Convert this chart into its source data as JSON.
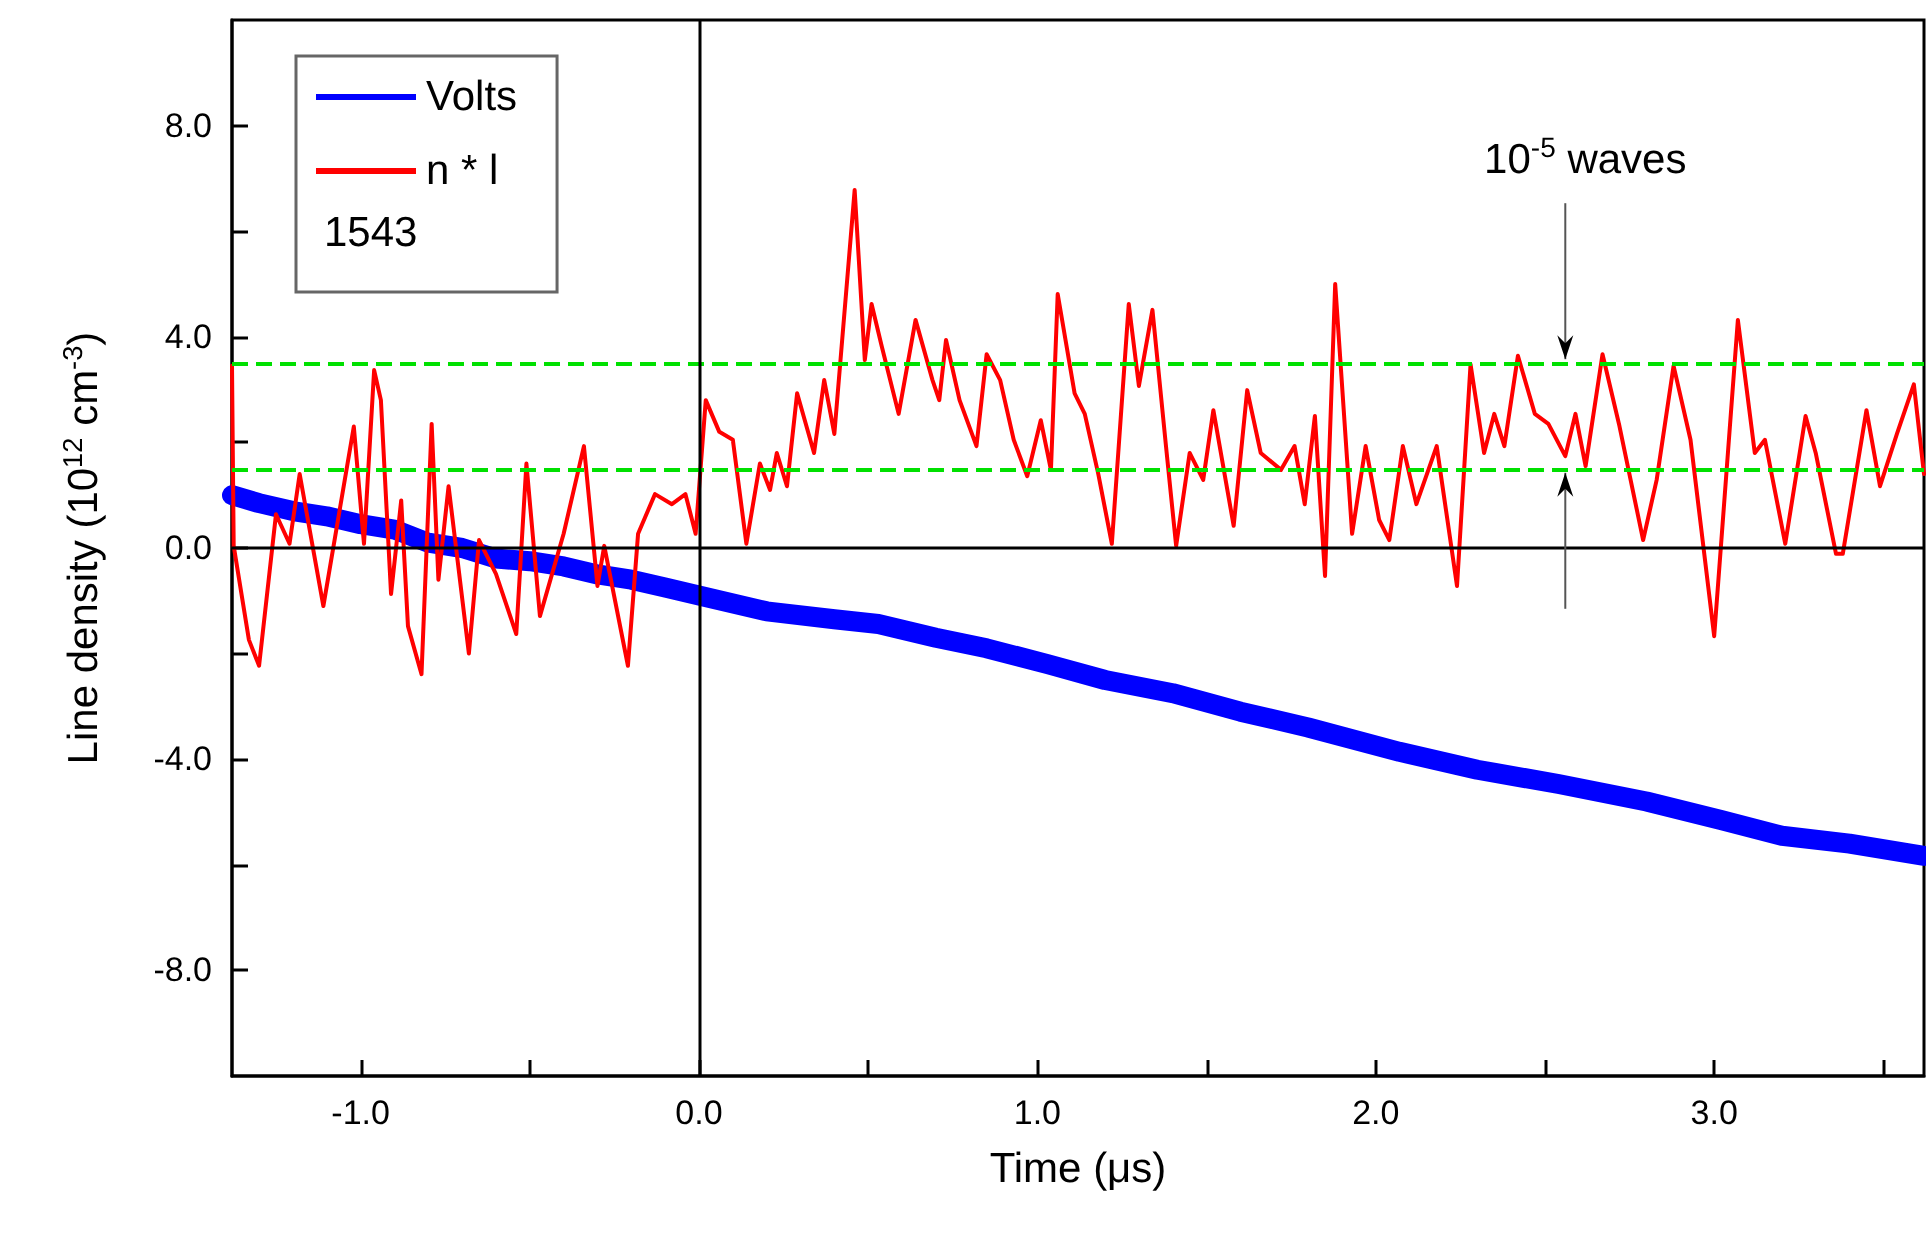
{
  "chart_data": {
    "type": "line",
    "xlabel": "Time (μs)",
    "ylabel": "Line density (10$^{12}$ cm$^{-3}$)",
    "xlim": [
      -1.38,
      3.62
    ],
    "ylim": [
      -10,
      10
    ],
    "xticks": [
      {
        "value": -1,
        "label": "-1.0"
      },
      {
        "value": -0.5,
        "label": null
      },
      {
        "value": 0,
        "label": "0.0"
      },
      {
        "value": 0.5,
        "label": null
      },
      {
        "value": 1,
        "label": "1.0"
      },
      {
        "value": 1.5,
        "label": null
      },
      {
        "value": 2,
        "label": "2.0"
      },
      {
        "value": 2.5,
        "label": null
      },
      {
        "value": 3,
        "label": "3.0"
      },
      {
        "value": 3.5,
        "label": null
      }
    ],
    "yticks": [
      {
        "value": -8,
        "label": "-8.0"
      },
      {
        "value": -6,
        "label": null
      },
      {
        "value": -4,
        "label": "-4.0"
      },
      {
        "value": -2,
        "label": null
      },
      {
        "value": 0,
        "label": "0.0"
      },
      {
        "value": 2,
        "label": null
      },
      {
        "value": 4,
        "label": "4.0"
      },
      {
        "value": 6,
        "label": null
      },
      {
        "value": 8,
        "label": "8.0"
      }
    ],
    "legend": "top left",
    "grid": false,
    "marker": "none",
    "series": [
      {
        "name": "Volts",
        "color": "#0000ff",
        "x": [
          -1.38,
          -1.3,
          -1.2,
          -1.1,
          -1.0,
          -0.9,
          -0.8,
          -0.7,
          -0.6,
          -0.5,
          -0.4,
          -0.3,
          -0.2,
          -0.1,
          0.0,
          0.2,
          0.4,
          0.53,
          0.7,
          0.85,
          1.03,
          1.2,
          1.4,
          1.6,
          1.8,
          2.07,
          2.3,
          2.54,
          2.8,
          3.02,
          3.2,
          3.4,
          3.62
        ],
        "values": [
          1.0,
          0.85,
          0.7,
          0.6,
          0.45,
          0.35,
          0.1,
          0.0,
          -0.2,
          -0.25,
          -0.35,
          -0.5,
          -0.6,
          -0.75,
          -0.9,
          -1.2,
          -1.35,
          -1.44,
          -1.7,
          -1.9,
          -2.2,
          -2.5,
          -2.75,
          -3.1,
          -3.4,
          -3.86,
          -4.2,
          -4.47,
          -4.8,
          -5.15,
          -5.45,
          -5.6,
          -5.83
        ]
      },
      {
        "name": "n * l",
        "color": "#ff0000",
        "x": [
          -1.38,
          -1.375,
          -1.33,
          -1.3,
          -1.25,
          -1.21,
          -1.18,
          -1.11,
          -1.02,
          -0.99,
          -0.96,
          -0.94,
          -0.91,
          -0.88,
          -0.86,
          -0.82,
          -0.79,
          -0.77,
          -0.74,
          -0.68,
          -0.65,
          -0.6,
          -0.54,
          -0.51,
          -0.47,
          -0.4,
          -0.34,
          -0.3,
          -0.28,
          -0.21,
          -0.18,
          -0.13,
          -0.08,
          -0.04,
          -0.01,
          0.02,
          0.06,
          0.1,
          0.14,
          0.18,
          0.21,
          0.23,
          0.26,
          0.29,
          0.34,
          0.37,
          0.4,
          0.46,
          0.49,
          0.51,
          0.54,
          0.59,
          0.64,
          0.69,
          0.71,
          0.73,
          0.77,
          0.82,
          0.85,
          0.89,
          0.93,
          0.97,
          1.01,
          1.04,
          1.06,
          1.11,
          1.14,
          1.18,
          1.22,
          1.27,
          1.3,
          1.34,
          1.38,
          1.41,
          1.45,
          1.49,
          1.52,
          1.58,
          1.62,
          1.66,
          1.72,
          1.76,
          1.79,
          1.82,
          1.85,
          1.88,
          1.93,
          1.97,
          2.01,
          2.04,
          2.08,
          2.12,
          2.18,
          2.24,
          2.28,
          2.32,
          2.35,
          2.38,
          2.42,
          2.47,
          2.51,
          2.56,
          2.59,
          2.62,
          2.67,
          2.72,
          2.79,
          2.83,
          2.88,
          2.93,
          3.0,
          3.07,
          3.12,
          3.15,
          3.21,
          3.27,
          3.3,
          3.36,
          3.38,
          3.45,
          3.49,
          3.54,
          3.59,
          3.62
        ],
        "values": [
          3.45,
          0.04,
          -1.74,
          -2.23,
          0.64,
          0.08,
          1.4,
          -1.1,
          2.3,
          0.08,
          3.37,
          2.8,
          -0.87,
          0.9,
          -1.48,
          -2.39,
          2.35,
          -0.6,
          1.17,
          -2.0,
          0.15,
          -0.49,
          -1.63,
          1.6,
          -1.29,
          0.27,
          1.93,
          -0.72,
          0.04,
          -2.23,
          0.27,
          1.02,
          0.83,
          1.02,
          0.27,
          2.8,
          2.2,
          2.05,
          0.08,
          1.6,
          1.1,
          1.8,
          1.17,
          2.93,
          1.8,
          3.18,
          2.16,
          6.78,
          3.56,
          4.62,
          3.82,
          2.54,
          4.32,
          3.18,
          2.8,
          3.94,
          2.8,
          1.93,
          3.67,
          3.18,
          2.05,
          1.36,
          2.42,
          1.48,
          4.81,
          2.93,
          2.54,
          1.4,
          0.08,
          4.62,
          3.07,
          4.51,
          1.93,
          0.04,
          1.8,
          1.29,
          2.61,
          0.42,
          2.99,
          1.8,
          1.48,
          1.93,
          0.83,
          2.5,
          -0.53,
          5.0,
          0.27,
          1.93,
          0.53,
          0.15,
          1.93,
          0.83,
          1.93,
          -0.72,
          3.48,
          1.8,
          2.54,
          1.93,
          3.64,
          2.54,
          2.35,
          1.74,
          2.54,
          1.55,
          3.67,
          2.31,
          0.15,
          1.29,
          3.45,
          2.05,
          -1.67,
          4.32,
          1.8,
          2.05,
          0.08,
          2.5,
          1.8,
          -0.11,
          -0.11,
          2.61,
          1.17,
          2.16,
          3.1,
          1.4
        ]
      }
    ],
    "ref_lines": [
      {
        "axis": "y",
        "value": 3.5,
        "color": "#00e000",
        "line_style": "dashed"
      },
      {
        "axis": "y",
        "value": 1.5,
        "color": "#00e000",
        "line_style": "dashed"
      },
      {
        "axis": "x",
        "value": 0,
        "color": "#000000",
        "line_style": "solid"
      },
      {
        "axis": "y",
        "value": 0,
        "color": "#000000",
        "line_style": "solid"
      }
    ],
    "annotations": [
      "1543",
      {
        "text": "10$^{-5}$ waves",
        "x": 2.56,
        "y": 3.5
      }
    ]
  }
}
